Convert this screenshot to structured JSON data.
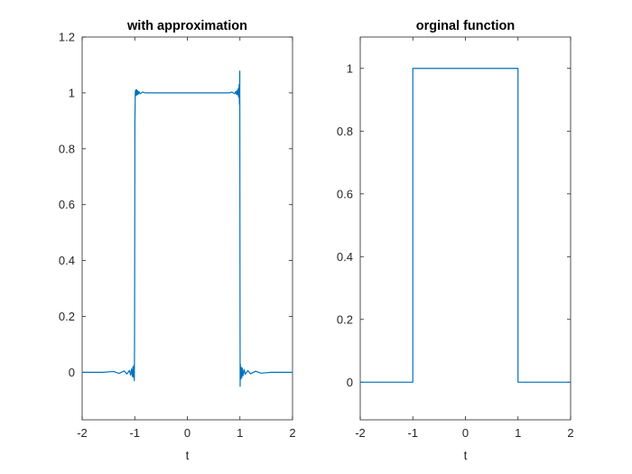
{
  "series_color": "#0072bd",
  "chart_data": [
    {
      "type": "line",
      "title": "with approximation",
      "xlabel": "t",
      "ylabel": "",
      "xlim": [
        -2,
        2
      ],
      "ylim": [
        -0.17,
        1.2
      ],
      "xticks": [
        -2,
        -1,
        0,
        1,
        2
      ],
      "yticks": [
        0,
        0.2,
        0.4,
        0.6,
        0.8,
        1,
        1.2
      ],
      "xtick_labels": [
        "-2",
        "-1",
        "0",
        "1",
        "2"
      ],
      "ytick_labels": [
        "0",
        "0.2",
        "0.4",
        "0.6",
        "0.8",
        "1",
        "1.2"
      ],
      "grid": false,
      "legend": "none",
      "series": [
        {
          "description_free_data": true,
          "x": [
            -2,
            -1.6,
            -1.4,
            -1.3,
            -1.2,
            -1.15,
            -1.1,
            -1.08,
            -1.06,
            -1.045,
            -1.035,
            -1.025,
            -1.015,
            -1.008,
            -1.004,
            -1.0,
            -0.997,
            -0.99,
            -0.985,
            -0.975,
            -0.965,
            -0.955,
            -0.945,
            -0.935,
            -0.92,
            -0.9,
            -0.85,
            -0.8,
            -0.6,
            -0.4,
            -0.2,
            0,
            0.2,
            0.4,
            0.6,
            0.8,
            0.85,
            0.9,
            0.92,
            0.935,
            0.945,
            0.955,
            0.965,
            0.975,
            0.985,
            0.99,
            0.997,
            1.0,
            1.004,
            1.008,
            1.015,
            1.025,
            1.035,
            1.045,
            1.06,
            1.08,
            1.1,
            1.15,
            1.2,
            1.3,
            1.4,
            1.6,
            2
          ],
          "y": [
            0,
            0,
            0.003,
            -0.004,
            0.005,
            -0.006,
            0.007,
            -0.01,
            0.012,
            -0.015,
            0.02,
            -0.018,
            0.025,
            -0.03,
            0.1,
            0.5,
            0.9,
            1.0,
            1.01,
            0.99,
            1.012,
            0.993,
            1.008,
            0.995,
            1.005,
            0.997,
            1.003,
            1.0,
            1.0,
            1.0,
            1.0,
            1.0,
            1.0,
            1.0,
            1.0,
            1.0,
            1.003,
            0.997,
            1.005,
            0.995,
            1.008,
            0.993,
            1.015,
            0.985,
            1.03,
            0.96,
            1.078,
            0.5,
            -0.05,
            0.03,
            -0.025,
            0.018,
            -0.02,
            0.015,
            -0.012,
            0.01,
            -0.007,
            0.006,
            -0.005,
            0.004,
            -0.003,
            0,
            0
          ]
        }
      ]
    },
    {
      "type": "line",
      "title": "orginal function",
      "xlabel": "t",
      "ylabel": "",
      "xlim": [
        -2,
        2
      ],
      "ylim": [
        -0.12,
        1.1
      ],
      "xticks": [
        -2,
        -1,
        0,
        1,
        2
      ],
      "yticks": [
        0,
        0.2,
        0.4,
        0.6,
        0.8,
        1
      ],
      "xtick_labels": [
        "-2",
        "-1",
        "0",
        "1",
        "2"
      ],
      "ytick_labels": [
        "0",
        "0.2",
        "0.4",
        "0.6",
        "0.8",
        "1"
      ],
      "grid": false,
      "legend": "none",
      "series": [
        {
          "x": [
            -2,
            -1,
            -1,
            1,
            1,
            2
          ],
          "y": [
            0,
            0,
            1,
            1,
            0,
            0
          ]
        }
      ]
    }
  ]
}
